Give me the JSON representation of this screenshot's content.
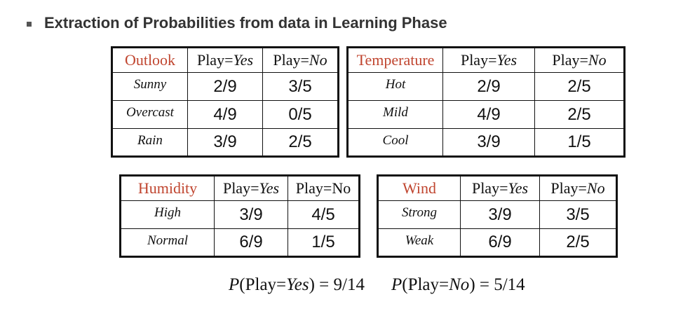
{
  "heading": "Extraction of Probabilities from data in Learning Phase",
  "tables": {
    "outlook": {
      "feature": "Outlook",
      "rows": [
        {
          "label": "Sunny",
          "yes": "2/9",
          "no": "3/5"
        },
        {
          "label": "Overcast",
          "yes": "4/9",
          "no": "0/5"
        },
        {
          "label": "Rain",
          "yes": "3/9",
          "no": "2/5"
        }
      ]
    },
    "temperature": {
      "feature": "Temperature",
      "rows": [
        {
          "label": "Hot",
          "yes": "2/9",
          "no": "2/5"
        },
        {
          "label": "Mild",
          "yes": "4/9",
          "no": "2/5"
        },
        {
          "label": "Cool",
          "yes": "3/9",
          "no": "1/5"
        }
      ]
    },
    "humidity": {
      "feature": "Humidity",
      "rows": [
        {
          "label": "High",
          "yes": "3/9",
          "no": "4/5"
        },
        {
          "label": "Normal",
          "yes": "6/9",
          "no": "1/5"
        }
      ]
    },
    "wind": {
      "feature": "Wind",
      "rows": [
        {
          "label": "Strong",
          "yes": "3/9",
          "no": "3/5"
        },
        {
          "label": "Weak",
          "yes": "6/9",
          "no": "2/5"
        }
      ]
    }
  },
  "header_parts": {
    "play": "Play=",
    "yes": "Yes",
    "no": "No"
  },
  "priors": {
    "p": "P",
    "yes_open": "(Play=",
    "yes_word": "Yes",
    "yes_close": ") = 9/14",
    "no_open": "(Play=",
    "no_word": "No",
    "no_close": ") = 5/14"
  },
  "colors": {
    "feature_header": "#c0452f",
    "border": "#111111"
  }
}
